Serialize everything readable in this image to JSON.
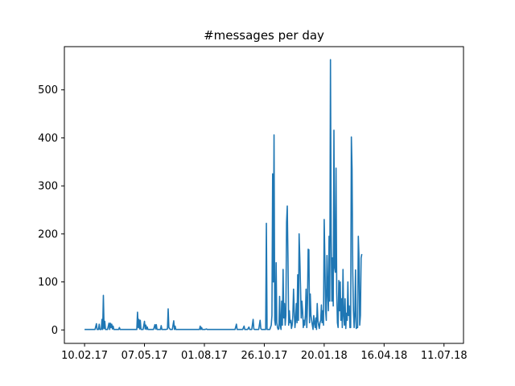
{
  "chart_data": {
    "type": "line",
    "title": "#messages per day",
    "xlabel": "",
    "ylabel": "",
    "x_ticks": [
      {
        "label": "10.02.17",
        "day": 0
      },
      {
        "label": "07.05.17",
        "day": 86
      },
      {
        "label": "01.08.17",
        "day": 172
      },
      {
        "label": "26.10.17",
        "day": 258
      },
      {
        "label": "20.01.18",
        "day": 344
      },
      {
        "label": "16.04.18",
        "day": 430
      },
      {
        "label": "11.07.18",
        "day": 516
      }
    ],
    "y_ticks": [
      0,
      100,
      200,
      300,
      400,
      500
    ],
    "xlim": [
      -29,
      544
    ],
    "ylim": [
      -28,
      590
    ],
    "grid": false,
    "legend": "none",
    "series": [
      {
        "color": "#1f77b4",
        "points": [
          [
            0,
            1
          ],
          [
            15,
            1
          ],
          [
            17,
            13
          ],
          [
            18,
            1
          ],
          [
            20,
            1
          ],
          [
            21,
            12
          ],
          [
            22,
            1
          ],
          [
            24,
            1
          ],
          [
            25,
            22
          ],
          [
            26,
            1
          ],
          [
            27,
            72
          ],
          [
            28,
            3
          ],
          [
            29,
            18
          ],
          [
            30,
            1
          ],
          [
            33,
            1
          ],
          [
            35,
            14
          ],
          [
            36,
            1
          ],
          [
            37,
            14
          ],
          [
            38,
            5
          ],
          [
            39,
            12
          ],
          [
            40,
            2
          ],
          [
            41,
            8
          ],
          [
            42,
            1
          ],
          [
            49,
            1
          ],
          [
            50,
            5
          ],
          [
            51,
            1
          ],
          [
            75,
            1
          ],
          [
            76,
            37
          ],
          [
            77,
            5
          ],
          [
            78,
            22
          ],
          [
            79,
            2
          ],
          [
            80,
            20
          ],
          [
            81,
            1
          ],
          [
            84,
            1
          ],
          [
            86,
            18
          ],
          [
            87,
            2
          ],
          [
            88,
            10
          ],
          [
            89,
            1
          ],
          [
            90,
            6
          ],
          [
            91,
            1
          ],
          [
            99,
            1
          ],
          [
            101,
            11
          ],
          [
            102,
            2
          ],
          [
            103,
            11
          ],
          [
            104,
            1
          ],
          [
            109,
            1
          ],
          [
            110,
            9
          ],
          [
            111,
            1
          ],
          [
            117,
            1
          ],
          [
            119,
            2
          ],
          [
            120,
            44
          ],
          [
            121,
            5
          ],
          [
            122,
            3
          ],
          [
            123,
            1
          ],
          [
            126,
            1
          ],
          [
            128,
            19
          ],
          [
            129,
            1
          ],
          [
            130,
            8
          ],
          [
            131,
            1
          ],
          [
            165,
            1
          ],
          [
            166,
            8
          ],
          [
            167,
            1
          ],
          [
            168,
            5
          ],
          [
            169,
            1
          ],
          [
            173,
            1
          ],
          [
            175,
            2
          ],
          [
            176,
            1
          ],
          [
            216,
            1
          ],
          [
            218,
            12
          ],
          [
            219,
            1
          ],
          [
            227,
            1
          ],
          [
            229,
            8
          ],
          [
            230,
            1
          ],
          [
            234,
            1
          ],
          [
            236,
            6
          ],
          [
            237,
            1
          ],
          [
            240,
            1
          ],
          [
            242,
            22
          ],
          [
            243,
            2
          ],
          [
            244,
            1
          ],
          [
            250,
            1
          ],
          [
            252,
            20
          ],
          [
            253,
            3
          ],
          [
            254,
            1
          ],
          [
            260,
            1
          ],
          [
            261,
            222
          ],
          [
            262,
            1
          ],
          [
            266,
            1
          ],
          [
            268,
            10
          ],
          [
            269,
            30
          ],
          [
            270,
            325
          ],
          [
            271,
            100
          ],
          [
            272,
            406
          ],
          [
            273,
            20
          ],
          [
            274,
            10
          ],
          [
            275,
            140
          ],
          [
            276,
            15
          ],
          [
            277,
            5
          ],
          [
            278,
            1
          ],
          [
            279,
            3
          ],
          [
            280,
            70
          ],
          [
            281,
            10
          ],
          [
            282,
            1
          ],
          [
            283,
            60
          ],
          [
            284,
            10
          ],
          [
            285,
            126
          ],
          [
            286,
            25
          ],
          [
            287,
            55
          ],
          [
            288,
            10
          ],
          [
            289,
            30
          ],
          [
            290,
            224
          ],
          [
            291,
            258
          ],
          [
            292,
            150
          ],
          [
            293,
            10
          ],
          [
            294,
            40
          ],
          [
            295,
            15
          ],
          [
            296,
            20
          ],
          [
            297,
            3
          ],
          [
            298,
            10
          ],
          [
            299,
            30
          ],
          [
            300,
            85
          ],
          [
            301,
            40
          ],
          [
            302,
            5
          ],
          [
            303,
            20
          ],
          [
            304,
            55
          ],
          [
            305,
            15
          ],
          [
            306,
            115
          ],
          [
            307,
            20
          ],
          [
            308,
            200
          ],
          [
            309,
            150
          ],
          [
            310,
            90
          ],
          [
            311,
            25
          ],
          [
            312,
            60
          ],
          [
            313,
            40
          ],
          [
            314,
            5
          ],
          [
            315,
            20
          ],
          [
            316,
            10
          ],
          [
            317,
            30
          ],
          [
            318,
            85
          ],
          [
            319,
            5
          ],
          [
            320,
            55
          ],
          [
            321,
            168
          ],
          [
            322,
            167
          ],
          [
            323,
            15
          ],
          [
            324,
            75
          ],
          [
            325,
            30
          ],
          [
            326,
            20
          ],
          [
            327,
            10
          ],
          [
            328,
            1
          ],
          [
            329,
            30
          ],
          [
            330,
            15
          ],
          [
            331,
            5
          ],
          [
            332,
            25
          ],
          [
            333,
            1
          ],
          [
            334,
            55
          ],
          [
            335,
            20
          ],
          [
            336,
            10
          ],
          [
            337,
            3
          ],
          [
            338,
            15
          ],
          [
            339,
            20
          ],
          [
            340,
            52
          ],
          [
            341,
            15
          ],
          [
            342,
            40
          ],
          [
            343,
            10
          ],
          [
            344,
            230
          ],
          [
            345,
            145
          ],
          [
            346,
            40
          ],
          [
            347,
            20
          ],
          [
            348,
            155
          ],
          [
            349,
            80
          ],
          [
            350,
            40
          ],
          [
            351,
            195
          ],
          [
            352,
            60
          ],
          [
            353,
            563
          ],
          [
            354,
            200
          ],
          [
            355,
            60
          ],
          [
            356,
            150
          ],
          [
            357,
            50
          ],
          [
            358,
            416
          ],
          [
            359,
            130
          ],
          [
            360,
            120
          ],
          [
            361,
            337
          ],
          [
            362,
            80
          ],
          [
            363,
            15
          ],
          [
            364,
            5
          ],
          [
            365,
            103
          ],
          [
            366,
            40
          ],
          [
            367,
            100
          ],
          [
            368,
            20
          ],
          [
            369,
            65
          ],
          [
            370,
            5
          ],
          [
            371,
            126
          ],
          [
            372,
            30
          ],
          [
            373,
            10
          ],
          [
            374,
            65
          ],
          [
            375,
            3
          ],
          [
            376,
            35
          ],
          [
            377,
            20
          ],
          [
            378,
            100
          ],
          [
            379,
            30
          ],
          [
            380,
            50
          ],
          [
            381,
            5
          ],
          [
            382,
            5
          ],
          [
            383,
            402
          ],
          [
            384,
            335
          ],
          [
            385,
            120
          ],
          [
            386,
            40
          ],
          [
            387,
            5
          ],
          [
            388,
            30
          ],
          [
            389,
            125
          ],
          [
            390,
            3
          ],
          [
            391,
            5
          ],
          [
            392,
            5
          ],
          [
            393,
            195
          ],
          [
            394,
            150
          ],
          [
            395,
            10
          ],
          [
            396,
            30
          ],
          [
            397,
            150
          ],
          [
            398,
            158
          ]
        ]
      }
    ]
  }
}
